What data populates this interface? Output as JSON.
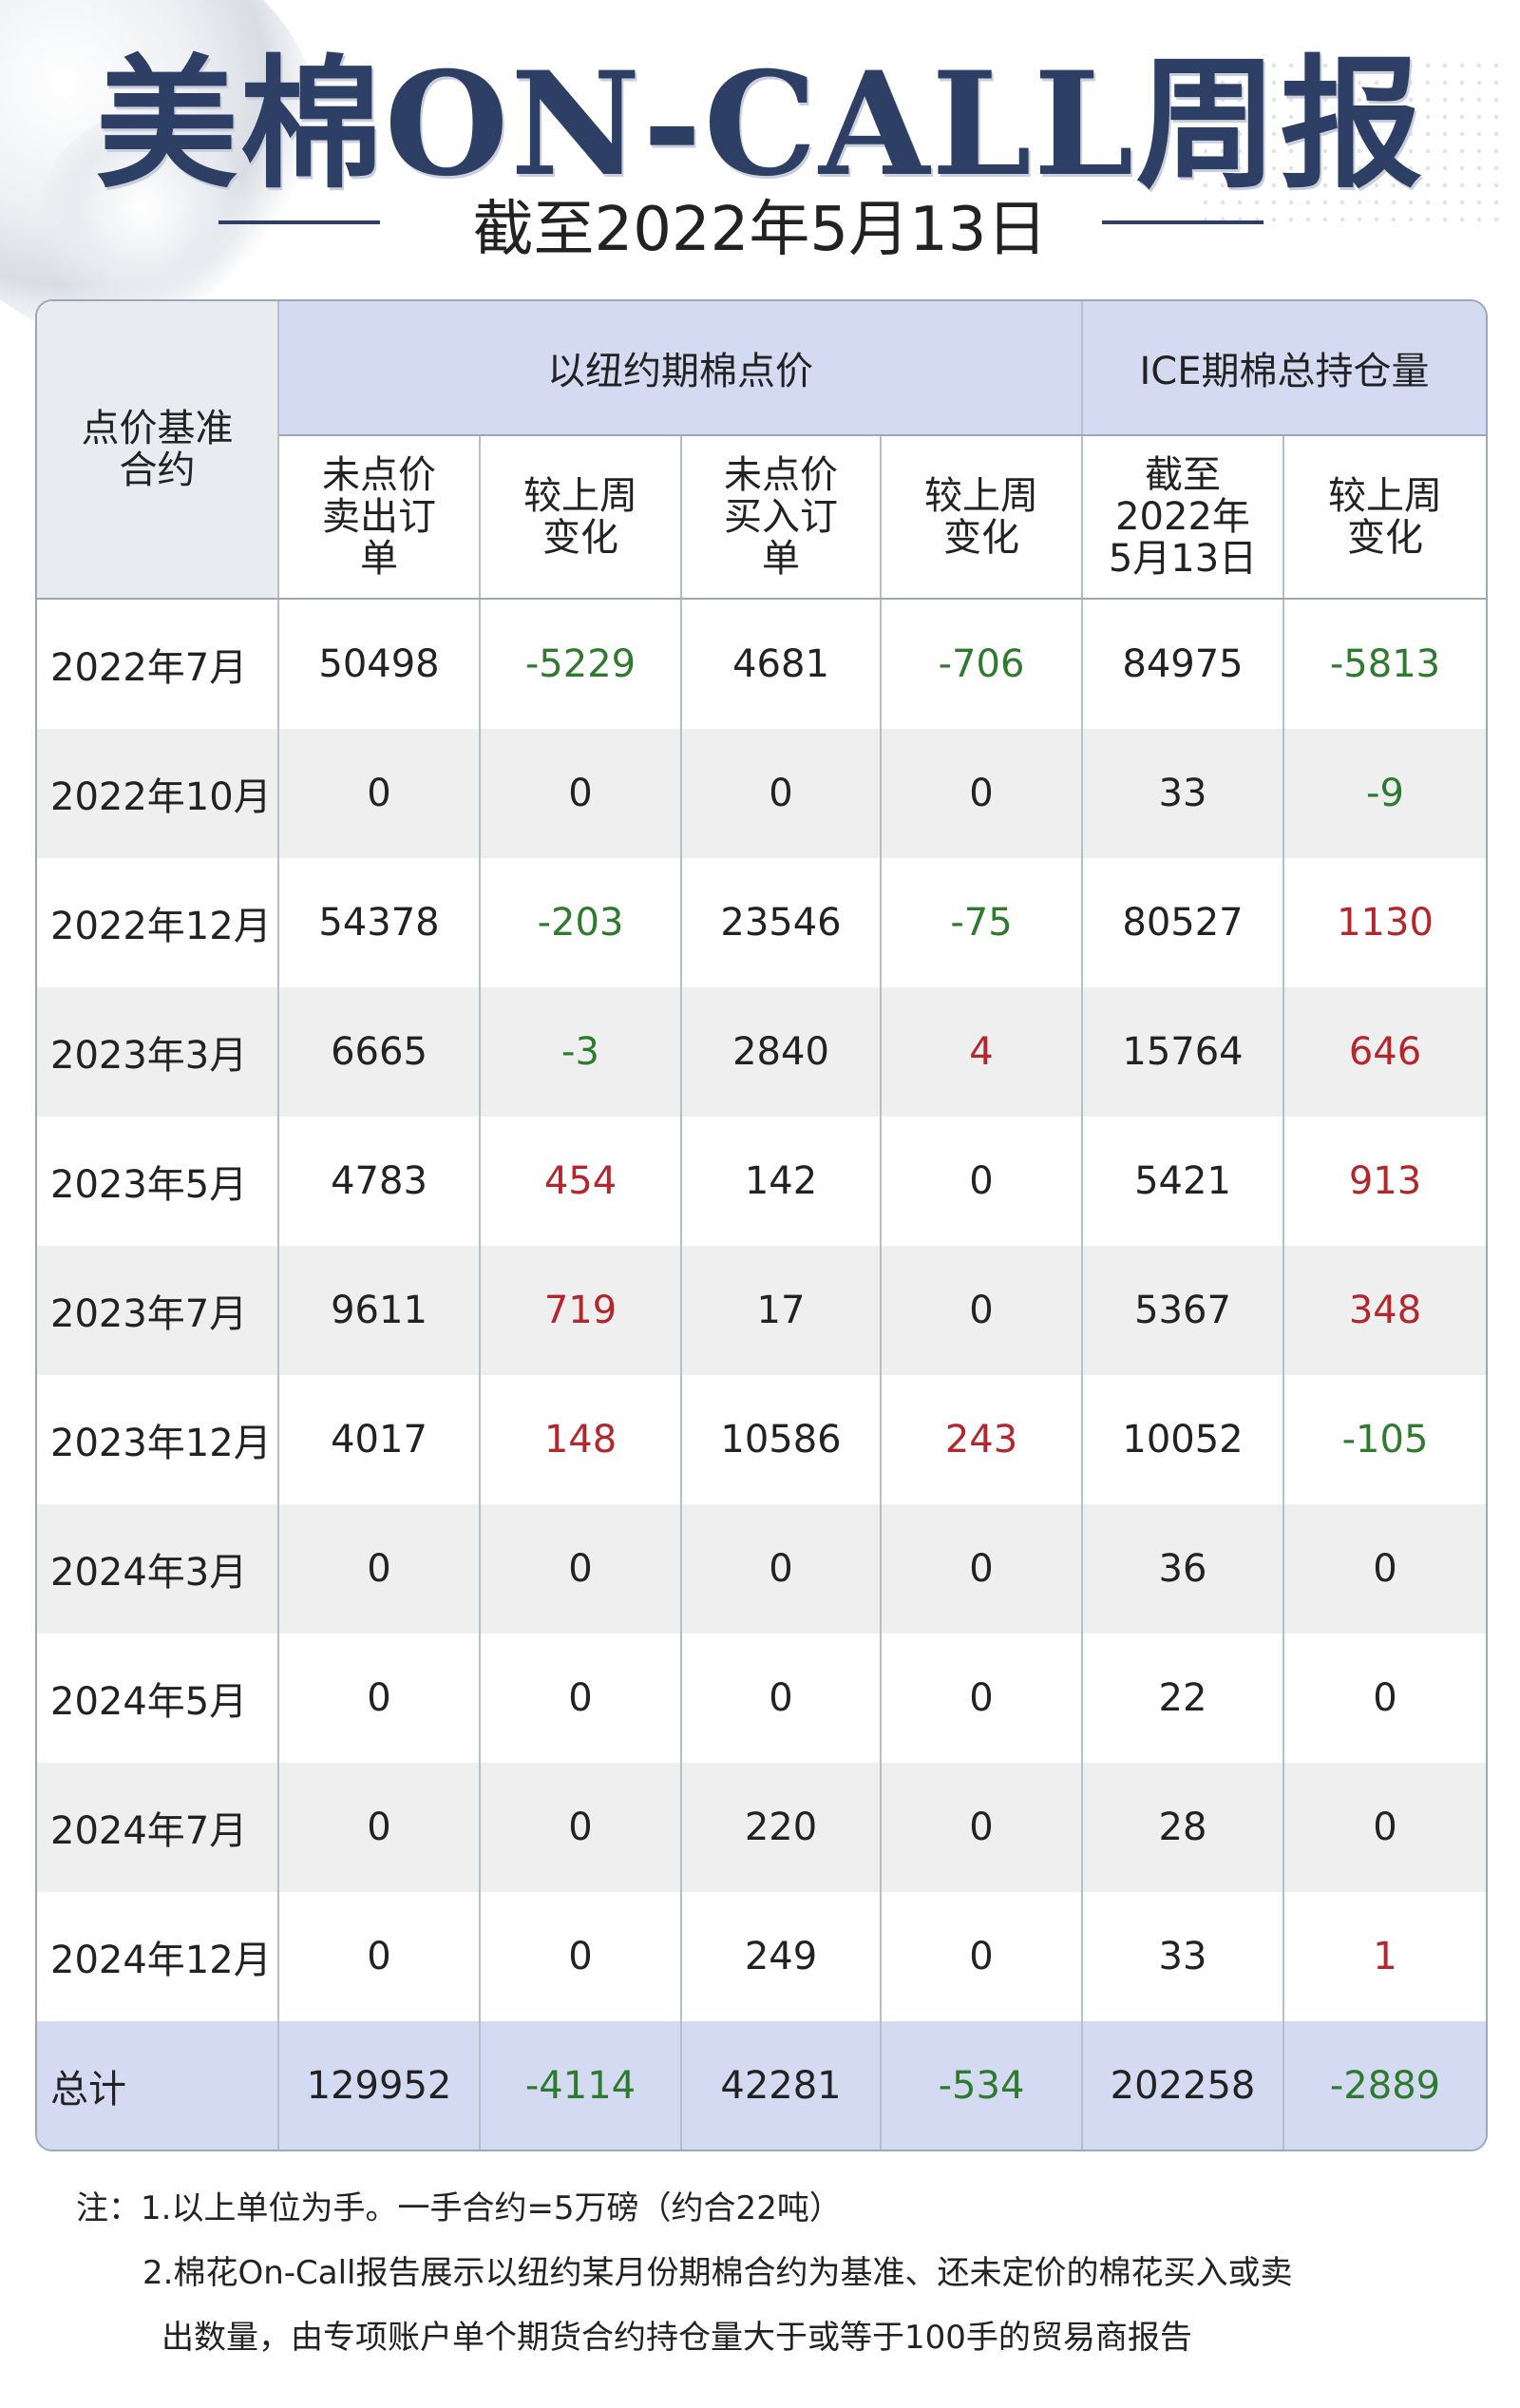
{
  "header": {
    "title": "美棉ON-CALL周报",
    "subtitle": "截至2022年5月13日"
  },
  "table": {
    "corner_label": "点价基准合约",
    "group_ny": "以纽约期棉点价",
    "group_ice": "ICE期棉总持仓量",
    "columns": [
      "未点价卖出订单",
      "较上周变化",
      "未点价买入订单",
      "较上周变化",
      "截至2022年5月13日",
      "较上周变化"
    ],
    "rows": [
      {
        "label": "2022年7月",
        "c1": "50498",
        "c2": "-5229",
        "c3": "4681",
        "c4": "-706",
        "c5": "84975",
        "c6": "-5813"
      },
      {
        "label": "2022年10月",
        "c1": "0",
        "c2": "0",
        "c3": "0",
        "c4": "0",
        "c5": "33",
        "c6": "-9"
      },
      {
        "label": "2022年12月",
        "c1": "54378",
        "c2": "-203",
        "c3": "23546",
        "c4": "-75",
        "c5": "80527",
        "c6": "1130"
      },
      {
        "label": "2023年3月",
        "c1": "6665",
        "c2": "-3",
        "c3": "2840",
        "c4": "4",
        "c5": "15764",
        "c6": "646"
      },
      {
        "label": "2023年5月",
        "c1": "4783",
        "c2": "454",
        "c3": "142",
        "c4": "0",
        "c5": "5421",
        "c6": "913"
      },
      {
        "label": "2023年7月",
        "c1": "9611",
        "c2": "719",
        "c3": "17",
        "c4": "0",
        "c5": "5367",
        "c6": "348"
      },
      {
        "label": "2023年12月",
        "c1": "4017",
        "c2": "148",
        "c3": "10586",
        "c4": "243",
        "c5": "10052",
        "c6": "-105"
      },
      {
        "label": "2024年3月",
        "c1": "0",
        "c2": "0",
        "c3": "0",
        "c4": "0",
        "c5": "36",
        "c6": "0"
      },
      {
        "label": "2024年5月",
        "c1": "0",
        "c2": "0",
        "c3": "0",
        "c4": "0",
        "c5": "22",
        "c6": "0"
      },
      {
        "label": "2024年7月",
        "c1": "0",
        "c2": "0",
        "c3": "220",
        "c4": "0",
        "c5": "28",
        "c6": "0"
      },
      {
        "label": "2024年12月",
        "c1": "0",
        "c2": "0",
        "c3": "249",
        "c4": "0",
        "c5": "33",
        "c6": "1"
      }
    ],
    "total": {
      "label": "总计",
      "c1": "129952",
      "c2": "-4114",
      "c3": "42281",
      "c4": "-534",
      "c5": "202258",
      "c6": "-2889"
    }
  },
  "notes": {
    "line1": "注：1.以上单位为手。一手合约=5万磅（约合22吨）",
    "line2": "2.棉花On-Call报告展示以纽约某月份期棉合约为基准、还未定价的棉花买入或卖",
    "line3": "出数量，由专项账户单个期货合约持仓量大于或等于100手的贸易商报告"
  },
  "colors": {
    "title": "#2e3f66",
    "header_bg": "#d3daf2",
    "positive": "#b3262b",
    "negative": "#2e7a2e"
  }
}
